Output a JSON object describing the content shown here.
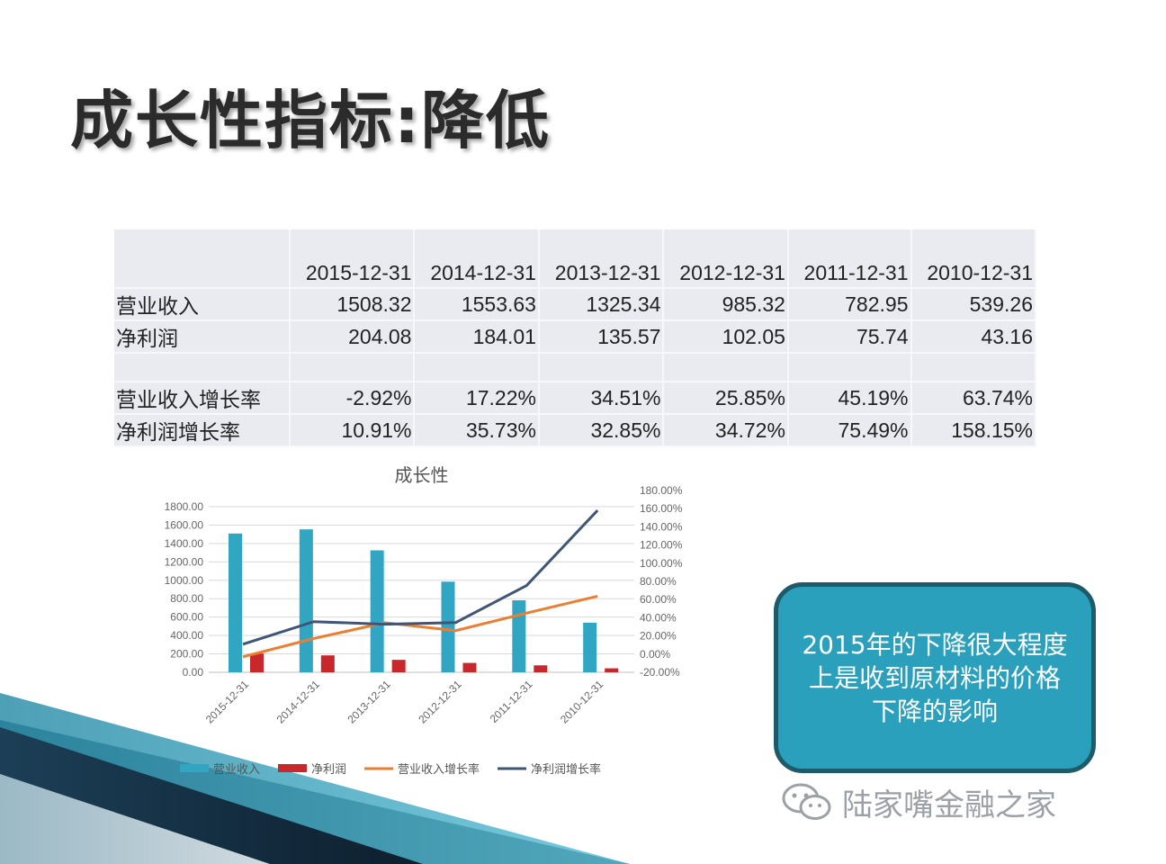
{
  "title": "成长性指标:降低",
  "table": {
    "dates": [
      "2015-12-31",
      "2014-12-31",
      "2013-12-31",
      "2012-12-31",
      "2011-12-31",
      "2010-12-31"
    ],
    "rows": [
      {
        "label": "营业收入",
        "values": [
          "1508.32",
          "1553.63",
          "1325.34",
          "985.32",
          "782.95",
          "539.26"
        ]
      },
      {
        "label": "净利润",
        "values": [
          "204.08",
          "184.01",
          "135.57",
          "102.05",
          "75.74",
          "43.16"
        ]
      },
      {
        "label": "营业收入增长率",
        "values": [
          "-2.92%",
          "17.22%",
          "34.51%",
          "25.85%",
          "45.19%",
          "63.74%"
        ]
      },
      {
        "label": "净利润增长率",
        "values": [
          "10.91%",
          "35.73%",
          "32.85%",
          "34.72%",
          "75.49%",
          "158.15%"
        ]
      }
    ]
  },
  "chart_data": {
    "type": "bar",
    "title": "成长性",
    "categories": [
      "2015-12-31",
      "2014-12-31",
      "2013-12-31",
      "2012-12-31",
      "2011-12-31",
      "2010-12-31"
    ],
    "series": [
      {
        "name": "营业收入",
        "type": "bar",
        "axis": "left",
        "color": "#31a6c3",
        "values": [
          1508.32,
          1553.63,
          1325.34,
          985.32,
          782.95,
          539.26
        ]
      },
      {
        "name": "净利润",
        "type": "bar",
        "axis": "left",
        "color": "#c8282c",
        "values": [
          204.08,
          184.01,
          135.57,
          102.05,
          75.74,
          43.16
        ]
      },
      {
        "name": "营业收入增长率",
        "type": "line",
        "axis": "right",
        "color": "#ed7d31",
        "values": [
          -2.92,
          17.22,
          34.51,
          25.85,
          45.19,
          63.74
        ]
      },
      {
        "name": "净利润增长率",
        "type": "line",
        "axis": "right",
        "color": "#3f5577",
        "values": [
          10.91,
          35.73,
          32.85,
          34.72,
          75.49,
          158.15
        ]
      }
    ],
    "ylim_left": [
      0,
      1800
    ],
    "ylim_right": [
      -20,
      180
    ],
    "yticks_left": [
      "1800.00",
      "1600.00",
      "1400.00",
      "1200.00",
      "1000.00",
      "800.00",
      "600.00",
      "400.00",
      "200.00",
      "0.00"
    ],
    "yticks_right": [
      "180.00%",
      "160.00%",
      "140.00%",
      "120.00%",
      "100.00%",
      "80.00%",
      "60.00%",
      "40.00%",
      "20.00%",
      "0.00%",
      "-20.00%"
    ],
    "grid": true,
    "legend": "bottom"
  },
  "callout": {
    "text": "2015年的下降很大程度上是收到原材料的价格下降的影响"
  },
  "watermark": {
    "text": "陆家嘴金融之家",
    "icon": "wechat-icon"
  }
}
